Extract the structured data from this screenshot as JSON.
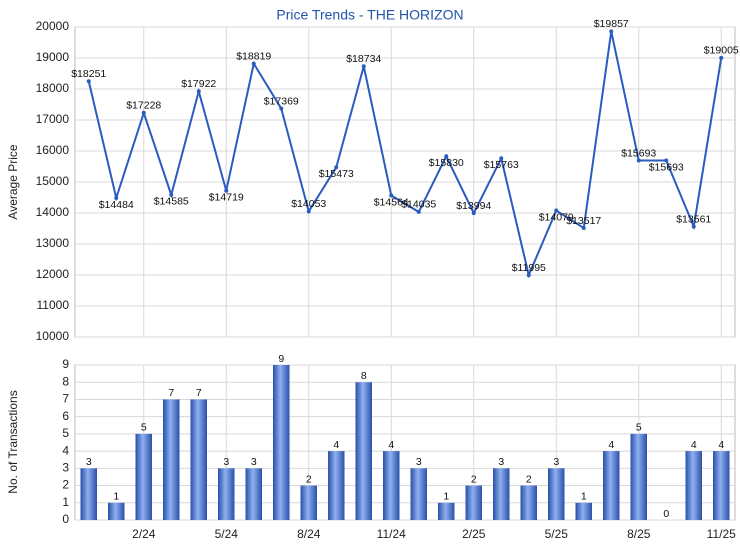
{
  "chart_data": [
    {
      "type": "line",
      "title": "Price Trends - THE HORIZON",
      "ylabel": "Average Price",
      "color": "#2a5bbf",
      "grid": true,
      "values": [
        18251,
        14484,
        17228,
        14585,
        17922,
        14719,
        18819,
        17369,
        14053,
        15473,
        18734,
        14564,
        14035,
        15830,
        13994,
        15763,
        11995,
        14079,
        13517,
        19857,
        15693,
        15693,
        13561,
        19005
      ],
      "value_labels": [
        "$18251",
        "$14484",
        "$17228",
        "$14585",
        "$17922",
        "$14719",
        "$18819",
        "$17369",
        "$14053",
        "$15473",
        "$18734",
        "$14564",
        "$14035",
        "$15830",
        "$13994",
        "$15763",
        "$11995",
        "$14079",
        "$13517",
        "$19857",
        "$15693",
        "$15693",
        "$13561",
        "$19005"
      ],
      "ylim": [
        10000,
        20000
      ],
      "yticks": [
        10000,
        11000,
        12000,
        13000,
        14000,
        15000,
        16000,
        17000,
        18000,
        19000,
        20000
      ]
    },
    {
      "type": "bar",
      "ylabel": "No. of Transactions",
      "color": "#3a62c8",
      "grid": true,
      "categories": [
        null,
        null,
        "2/24",
        null,
        null,
        "5/24",
        null,
        null,
        "8/24",
        null,
        null,
        "11/24",
        null,
        null,
        "2/25",
        null,
        null,
        "5/25",
        null,
        null,
        "8/25",
        null,
        null,
        "11/25"
      ],
      "values": [
        3,
        1,
        5,
        7,
        7,
        3,
        3,
        9,
        2,
        4,
        8,
        4,
        3,
        1,
        2,
        3,
        2,
        3,
        1,
        4,
        5,
        0,
        4,
        4
      ],
      "ylim": [
        0,
        9
      ],
      "yticks": [
        0,
        1,
        2,
        3,
        4,
        5,
        6,
        7,
        8,
        9
      ]
    }
  ]
}
